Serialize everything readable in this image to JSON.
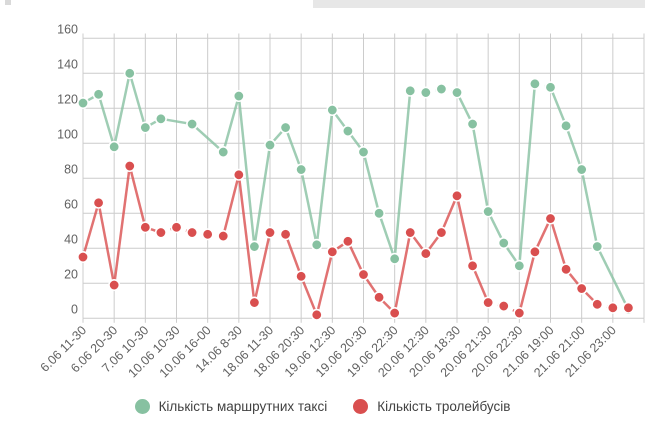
{
  "chart_data": {
    "type": "line",
    "title": "",
    "xlabel": "",
    "ylabel": "",
    "ylim": [
      0,
      160
    ],
    "y_ticks": [
      0,
      20,
      40,
      60,
      80,
      100,
      120,
      140,
      160
    ],
    "grid": true,
    "legend_position": "bottom",
    "n_points": 36,
    "label_every": 2,
    "x_tick_labels": [
      "6.06 11-30",
      "6.06 20-30",
      "7.06 10-30",
      "10.06 10-30",
      "10.06 16-00",
      "14.06 8-30",
      "18.06 11-30",
      "18.06 20:30",
      "19.06 12:30",
      "19.06 20:30",
      "19.06 22:30",
      "20.06 12:30",
      "20.06 18:30",
      "20.06 21:30",
      "20.06 22:30",
      "21.06 19:00",
      "21.06 21:00",
      "21.06 23:00"
    ],
    "series": [
      {
        "name": "Кількість маршрутних таксі",
        "color": "#87c1a1",
        "values": [
          123,
          128,
          98,
          140,
          109,
          114,
          null,
          111,
          null,
          95,
          127,
          41,
          99,
          109,
          85,
          42,
          119,
          107,
          95,
          60,
          34,
          130,
          129,
          131,
          129,
          111,
          61,
          43,
          30,
          134,
          132,
          110,
          85,
          41,
          null,
          5
        ],
        "dashed_segments": [
          [
            21,
            22
          ],
          [
            22,
            23
          ],
          [
            23,
            24
          ],
          [
            29,
            30
          ]
        ]
      },
      {
        "name": "Кількість тролейбусів",
        "color": "#d94f4f",
        "values": [
          35,
          66,
          19,
          87,
          52,
          49,
          52,
          49,
          48,
          47,
          82,
          9,
          49,
          48,
          24,
          2,
          38,
          44,
          25,
          12,
          3,
          49,
          37,
          49,
          70,
          30,
          9,
          7,
          3,
          38,
          57,
          28,
          17,
          8,
          6,
          6
        ],
        "dashed_segments": [
          [
            5,
            6
          ],
          [
            6,
            7
          ],
          [
            7,
            8
          ],
          [
            8,
            9
          ],
          [
            12,
            13
          ],
          [
            26,
            27
          ],
          [
            27,
            28
          ],
          [
            33,
            34
          ],
          [
            34,
            35
          ]
        ]
      }
    ],
    "colors": {
      "gridline": "#cccccc",
      "axis_label": "#616161",
      "background": "#ffffff"
    }
  }
}
